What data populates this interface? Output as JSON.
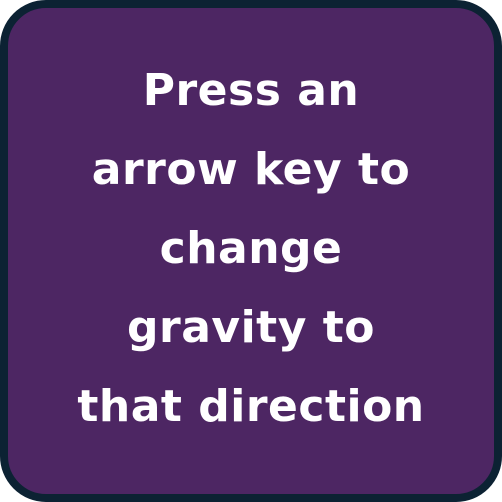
{
  "instruction_card": {
    "lines": [
      "Press an",
      "arrow key to",
      "change",
      "gravity to",
      "that direction"
    ],
    "colors": {
      "background": "#4d2663",
      "border": "#0c2233",
      "text": "#ffffff"
    }
  }
}
